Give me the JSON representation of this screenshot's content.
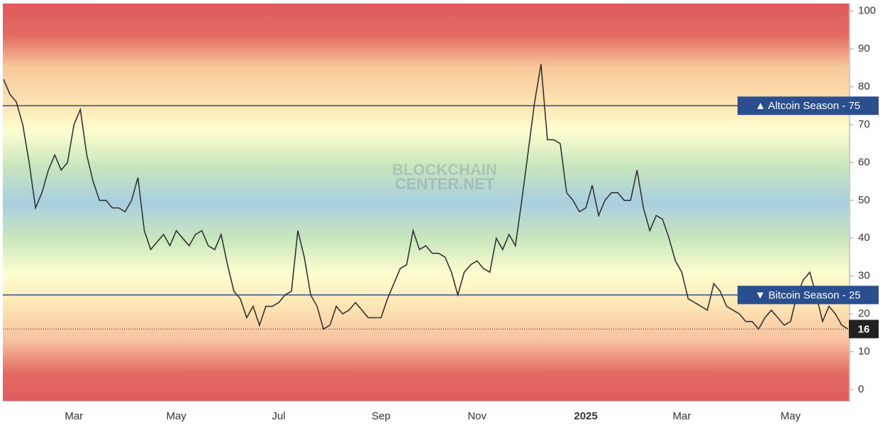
{
  "chart_data": {
    "type": "line",
    "watermark": [
      "BLOCKCHAIN",
      "CENTER.NET"
    ],
    "categories": [
      null,
      null,
      null,
      null,
      null,
      null,
      null,
      null,
      null,
      null,
      null,
      "Mar",
      null,
      null,
      null,
      null,
      null,
      null,
      null,
      null,
      null,
      null,
      null,
      null,
      null,
      null,
      null,
      "May",
      null,
      null,
      null,
      null,
      null,
      null,
      null,
      null,
      null,
      null,
      null,
      null,
      null,
      null,
      null,
      "Jul",
      null,
      null,
      null,
      null,
      null,
      null,
      null,
      null,
      null,
      null,
      null,
      null,
      null,
      null,
      null,
      "Sep",
      null,
      null,
      null,
      null,
      null,
      null,
      null,
      null,
      null,
      null,
      null,
      null,
      null,
      null,
      "Nov",
      null,
      null,
      null,
      null,
      null,
      null,
      null,
      null,
      null,
      null,
      null,
      null,
      null,
      null,
      null,
      null,
      "2025",
      null,
      null,
      null,
      null,
      null,
      null,
      null,
      null,
      null,
      null,
      null,
      null,
      null,
      null,
      "Mar",
      null,
      null,
      null,
      null,
      null,
      null,
      null,
      null,
      null,
      null,
      null,
      null,
      null,
      null,
      null,
      null,
      "May",
      null,
      null,
      null,
      null,
      null,
      null,
      null,
      null,
      null
    ],
    "series": [
      {
        "color": "#333333",
        "values": [
          82,
          78,
          76,
          70,
          60,
          48,
          52,
          58,
          62,
          58,
          60,
          70,
          74,
          62,
          55,
          50,
          50,
          48,
          48,
          47,
          50,
          56,
          42,
          37,
          39,
          41,
          38,
          42,
          40,
          38,
          41,
          42,
          38,
          37,
          41,
          33,
          26,
          24,
          19,
          22,
          17,
          22,
          22,
          23,
          25,
          26,
          42,
          35,
          25,
          22,
          16,
          17,
          22,
          20,
          21,
          23,
          21,
          19,
          19,
          19,
          24,
          28,
          32,
          33,
          42,
          37,
          38,
          36,
          36,
          35,
          31,
          25,
          31,
          33,
          34,
          32,
          31,
          40,
          37,
          41,
          38,
          50,
          63,
          76,
          86,
          66,
          66,
          65,
          52,
          50,
          47,
          48,
          54,
          46,
          50,
          52,
          52,
          50,
          50,
          58,
          48,
          42,
          46,
          45,
          40,
          34,
          31,
          24,
          23,
          22,
          21,
          28,
          26,
          22,
          21,
          20,
          18,
          18,
          16,
          19,
          21,
          19,
          17,
          18,
          25,
          29,
          31,
          25,
          18,
          22,
          20,
          17,
          16
        ]
      }
    ],
    "ylim": [
      -3,
      102
    ],
    "yticks": [
      0,
      10,
      20,
      30,
      40,
      50,
      60,
      70,
      80,
      90,
      100
    ],
    "reference_lines": [
      {
        "value": 75,
        "label": "▲ Altcoin Season - 75",
        "color": "#2b4f8e"
      },
      {
        "value": 25,
        "label": "▼ Bitcoin Season - 25",
        "color": "#2b4f8e"
      }
    ]
  }
}
